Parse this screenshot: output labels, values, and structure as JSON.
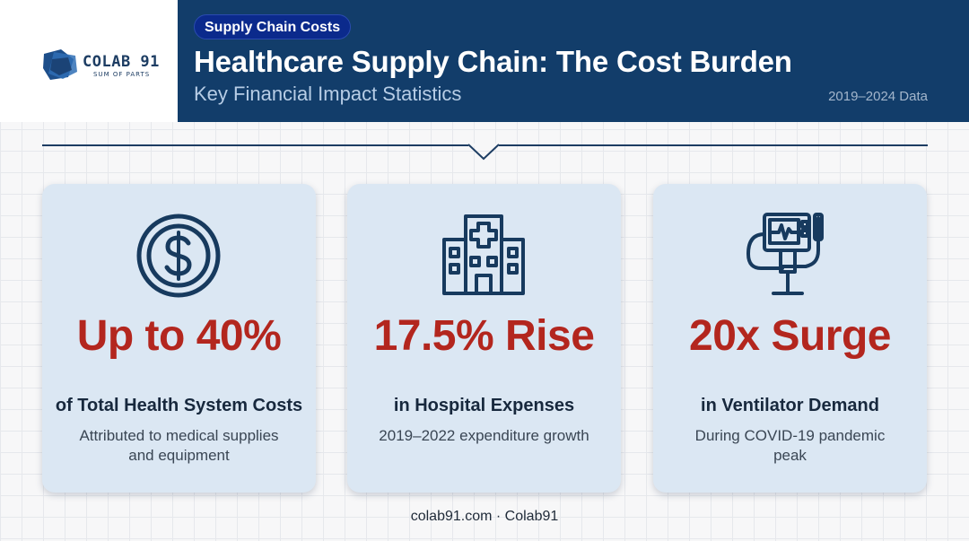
{
  "brand": {
    "name": "COLAB 91",
    "tagline": "SUM OF PARTS"
  },
  "header": {
    "badge": "Supply Chain Costs",
    "title": "Healthcare Supply Chain: The Cost Burden",
    "subtitle": "Key Financial Impact Statistics",
    "date_range": "2019–2024 Data"
  },
  "colors": {
    "header_bg": "#123d6a",
    "badge_bg": "#0b2a8c",
    "accent_red": "#b3261e",
    "card_bg": "#dbe7f3",
    "icon_navy": "#173a5e"
  },
  "cards": [
    {
      "icon": "dollar-coin-icon",
      "value": "Up to 40%",
      "label": "of Total Health System Costs",
      "description": "Attributed to medical supplies and equipment"
    },
    {
      "icon": "hospital-icon",
      "value": "17.5% Rise",
      "label": "in Hospital Expenses",
      "description": "2019–2022 expenditure growth"
    },
    {
      "icon": "ventilator-icon",
      "value": "20x Surge",
      "label": "in Ventilator Demand",
      "description": "During COVID-19 pandemic peak"
    }
  ],
  "footer": {
    "text": "colab91.com · Colab91"
  }
}
